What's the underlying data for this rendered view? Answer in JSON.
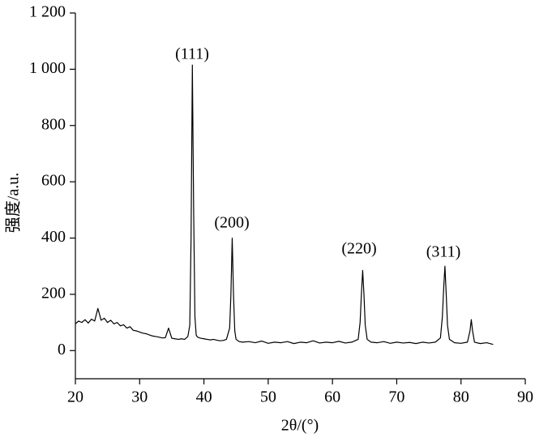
{
  "chart_data": {
    "type": "line",
    "xlabel": "2θ/(°)",
    "ylabel": "强度/a.u.",
    "color": "#000000",
    "xlim": [
      20,
      90
    ],
    "xticks": [
      20,
      30,
      40,
      50,
      60,
      70,
      80,
      90
    ],
    "ylim": [
      -100,
      1200
    ],
    "yticks": [
      0,
      200,
      400,
      600,
      800,
      {
        "value": 1000,
        "label": "1 000"
      },
      {
        "value": 1200,
        "label": "1 200"
      }
    ],
    "annotations": [
      "(111)",
      "(200)",
      "(220)",
      "(311)"
    ],
    "x": [
      20,
      20.5,
      21,
      21.5,
      22,
      22.5,
      23,
      23.5,
      24,
      24.5,
      25,
      25.5,
      26,
      26.5,
      27,
      27.5,
      28,
      28.5,
      29,
      29.5,
      30,
      30.5,
      31,
      31.5,
      32,
      32.5,
      33,
      33.5,
      34,
      34.5,
      35,
      35.5,
      36,
      36.5,
      37,
      37.5,
      37.8,
      38.0,
      38.2,
      38.4,
      38.6,
      38.8,
      39,
      39.5,
      40,
      40.5,
      41,
      41.5,
      42,
      42.5,
      43,
      43.5,
      44,
      44.2,
      44.4,
      44.6,
      44.8,
      45,
      45.5,
      46,
      47,
      48,
      49,
      50,
      51,
      52,
      53,
      54,
      55,
      56,
      57,
      58,
      59,
      60,
      61,
      62,
      63,
      64,
      64.3,
      64.5,
      64.7,
      64.9,
      65.1,
      65.4,
      66,
      67,
      68,
      69,
      70,
      71,
      72,
      73,
      74,
      75,
      76,
      76.8,
      77.1,
      77.3,
      77.5,
      77.7,
      77.9,
      78.2,
      79,
      80,
      81,
      81.4,
      81.6,
      81.8,
      82.1,
      83,
      84,
      85
    ],
    "values": [
      95,
      105,
      100,
      110,
      98,
      112,
      105,
      150,
      108,
      115,
      100,
      108,
      95,
      100,
      88,
      92,
      80,
      85,
      72,
      70,
      66,
      62,
      60,
      56,
      52,
      50,
      48,
      45,
      46,
      80,
      44,
      42,
      40,
      42,
      40,
      50,
      90,
      400,
      1015,
      500,
      120,
      55,
      48,
      44,
      42,
      40,
      38,
      40,
      37,
      35,
      36,
      40,
      80,
      200,
      400,
      200,
      70,
      40,
      32,
      30,
      32,
      28,
      34,
      26,
      30,
      28,
      32,
      25,
      30,
      28,
      35,
      27,
      30,
      28,
      33,
      27,
      30,
      40,
      100,
      200,
      285,
      200,
      90,
      40,
      30,
      28,
      32,
      26,
      30,
      27,
      29,
      25,
      30,
      27,
      30,
      45,
      120,
      220,
      300,
      200,
      90,
      40,
      28,
      26,
      30,
      70,
      110,
      70,
      30,
      25,
      28,
      22
    ]
  }
}
